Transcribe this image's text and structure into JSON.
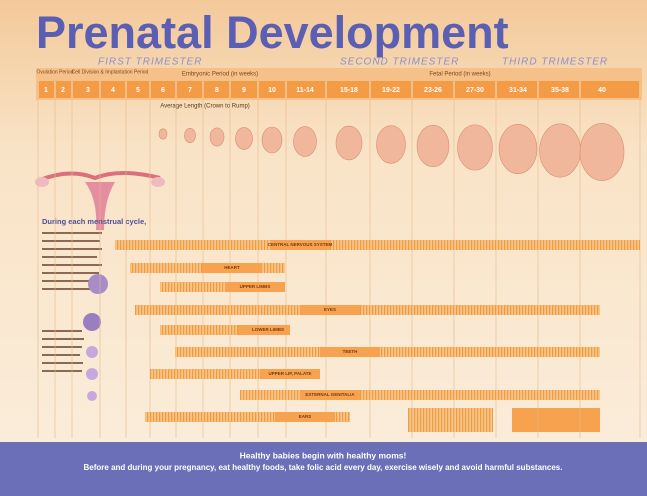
{
  "poster": {
    "title": "Prenatal Development",
    "trimesters": [
      "FIRST TRIMESTER",
      "SECOND TRIMESTER",
      "THIRD TRIMESTER"
    ],
    "periods": [
      "Ovulation Period",
      "Cell Division & Implantation Period",
      "Embryonic Period (in weeks)",
      "Fetal Period (in weeks)"
    ],
    "weeks": [
      "1",
      "2",
      "3",
      "4",
      "5",
      "6",
      "7",
      "8",
      "9",
      "10",
      "11-14",
      "15-18",
      "19-22",
      "23-26",
      "27-30",
      "31-34",
      "35-38",
      "40"
    ],
    "length_label": "Average Length (Crown to Rump)",
    "intro_heading": "During each menstrual cycle,",
    "systems": [
      "CENTRAL NERVOUS SYSTEM",
      "HEART",
      "UPPER LIMBS",
      "EYES",
      "LOWER LIMBS",
      "TEETH",
      "UPPER LIP, PALATE",
      "EXTERNAL GENITALIA",
      "EARS"
    ],
    "footer": {
      "headline": "Healthy babies begin with healthy moms!",
      "message": "Before and during your pregnancy, eat healthy foods, take folic acid every day, exercise wisely and avoid harmful substances."
    }
  }
}
